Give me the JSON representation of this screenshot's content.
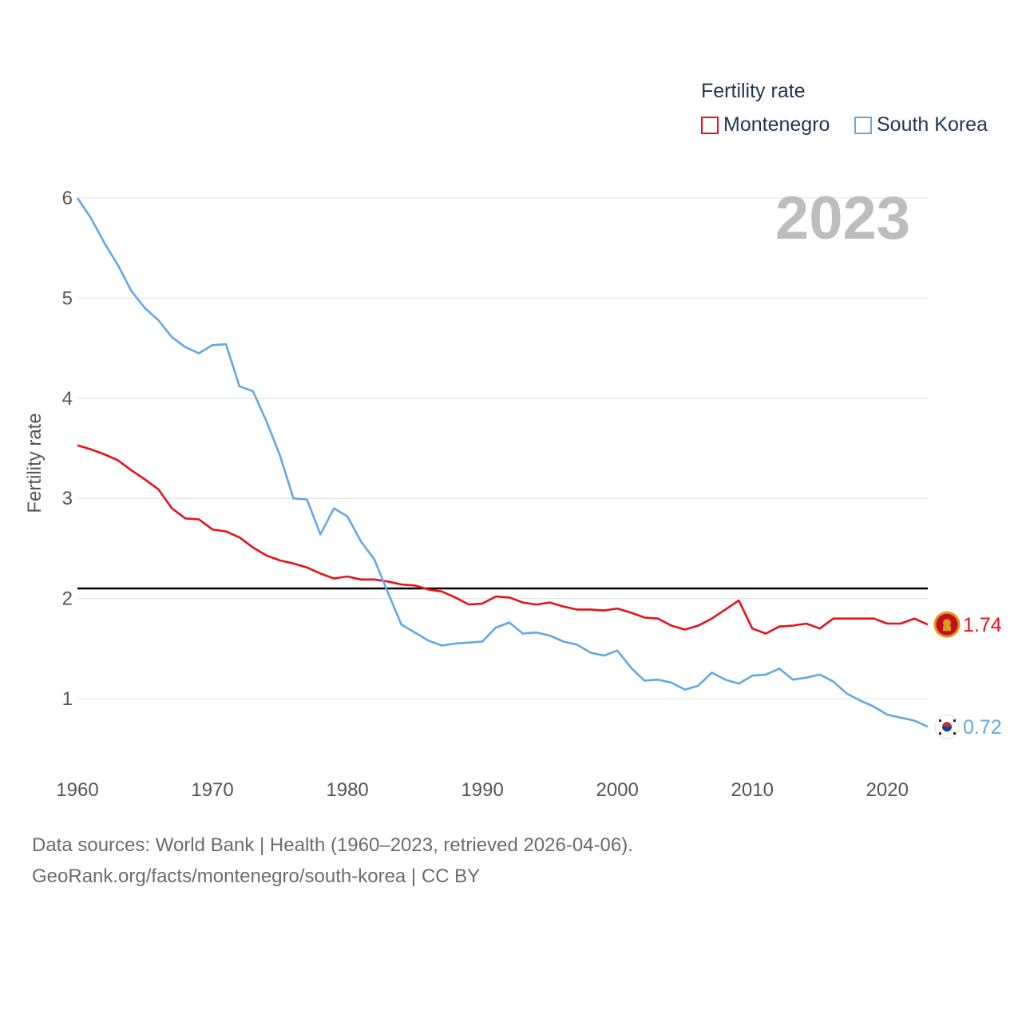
{
  "chart_data": {
    "type": "line",
    "legend_title": "Fertility rate",
    "legend_position": "top-right",
    "ylabel": "Fertility rate",
    "year_label": "2023",
    "xlim": [
      1960,
      2023
    ],
    "ylim": [
      0.4,
      6.0
    ],
    "y_ticks": [
      "1",
      "2",
      "3",
      "4",
      "5",
      "6"
    ],
    "x_ticks": [
      "1960",
      "1970",
      "1980",
      "1990",
      "2000",
      "2010",
      "2020"
    ],
    "reference_line": 2.1,
    "x": [
      1960,
      1961,
      1962,
      1963,
      1964,
      1965,
      1966,
      1967,
      1968,
      1969,
      1970,
      1971,
      1972,
      1973,
      1974,
      1975,
      1976,
      1977,
      1978,
      1979,
      1980,
      1981,
      1982,
      1983,
      1984,
      1985,
      1986,
      1987,
      1988,
      1989,
      1990,
      1991,
      1992,
      1993,
      1994,
      1995,
      1996,
      1997,
      1998,
      1999,
      2000,
      2001,
      2002,
      2003,
      2004,
      2005,
      2006,
      2007,
      2008,
      2009,
      2010,
      2011,
      2012,
      2013,
      2014,
      2015,
      2016,
      2017,
      2018,
      2019,
      2020,
      2021,
      2022,
      2023
    ],
    "series": [
      {
        "name": "Montenegro",
        "color": "#e8101a",
        "end_label": "1.74",
        "values": [
          3.53,
          3.49,
          3.44,
          3.38,
          3.28,
          3.19,
          3.09,
          2.9,
          2.8,
          2.79,
          2.69,
          2.67,
          2.61,
          2.51,
          2.43,
          2.38,
          2.35,
          2.31,
          2.25,
          2.2,
          2.22,
          2.19,
          2.19,
          2.17,
          2.14,
          2.13,
          2.09,
          2.07,
          2.01,
          1.94,
          1.95,
          2.02,
          2.01,
          1.96,
          1.94,
          1.96,
          1.92,
          1.89,
          1.89,
          1.88,
          1.9,
          1.86,
          1.81,
          1.8,
          1.73,
          1.69,
          1.73,
          1.8,
          1.89,
          1.98,
          1.7,
          1.65,
          1.72,
          1.73,
          1.75,
          1.7,
          1.8,
          1.8,
          1.8,
          1.8,
          1.75,
          1.75,
          1.8,
          1.74
        ]
      },
      {
        "name": "South Korea",
        "color": "#62a8e5",
        "end_label": "0.72",
        "values": [
          6.0,
          5.8,
          5.55,
          5.33,
          5.07,
          4.9,
          4.78,
          4.61,
          4.51,
          4.45,
          4.53,
          4.54,
          4.12,
          4.07,
          3.77,
          3.43,
          3.0,
          2.99,
          2.64,
          2.9,
          2.82,
          2.57,
          2.39,
          2.06,
          1.74,
          1.66,
          1.58,
          1.53,
          1.55,
          1.56,
          1.57,
          1.71,
          1.76,
          1.65,
          1.66,
          1.63,
          1.57,
          1.54,
          1.46,
          1.43,
          1.48,
          1.31,
          1.18,
          1.19,
          1.16,
          1.09,
          1.13,
          1.26,
          1.19,
          1.15,
          1.23,
          1.24,
          1.3,
          1.19,
          1.21,
          1.24,
          1.17,
          1.05,
          0.98,
          0.92,
          0.84,
          0.81,
          0.78,
          0.72
        ]
      }
    ]
  },
  "source": {
    "line1": "Data sources: World Bank | Health (1960–2023, retrieved 2026-04-06).",
    "line2": "GeoRank.org/facts/montenegro/south-korea | CC BY"
  }
}
